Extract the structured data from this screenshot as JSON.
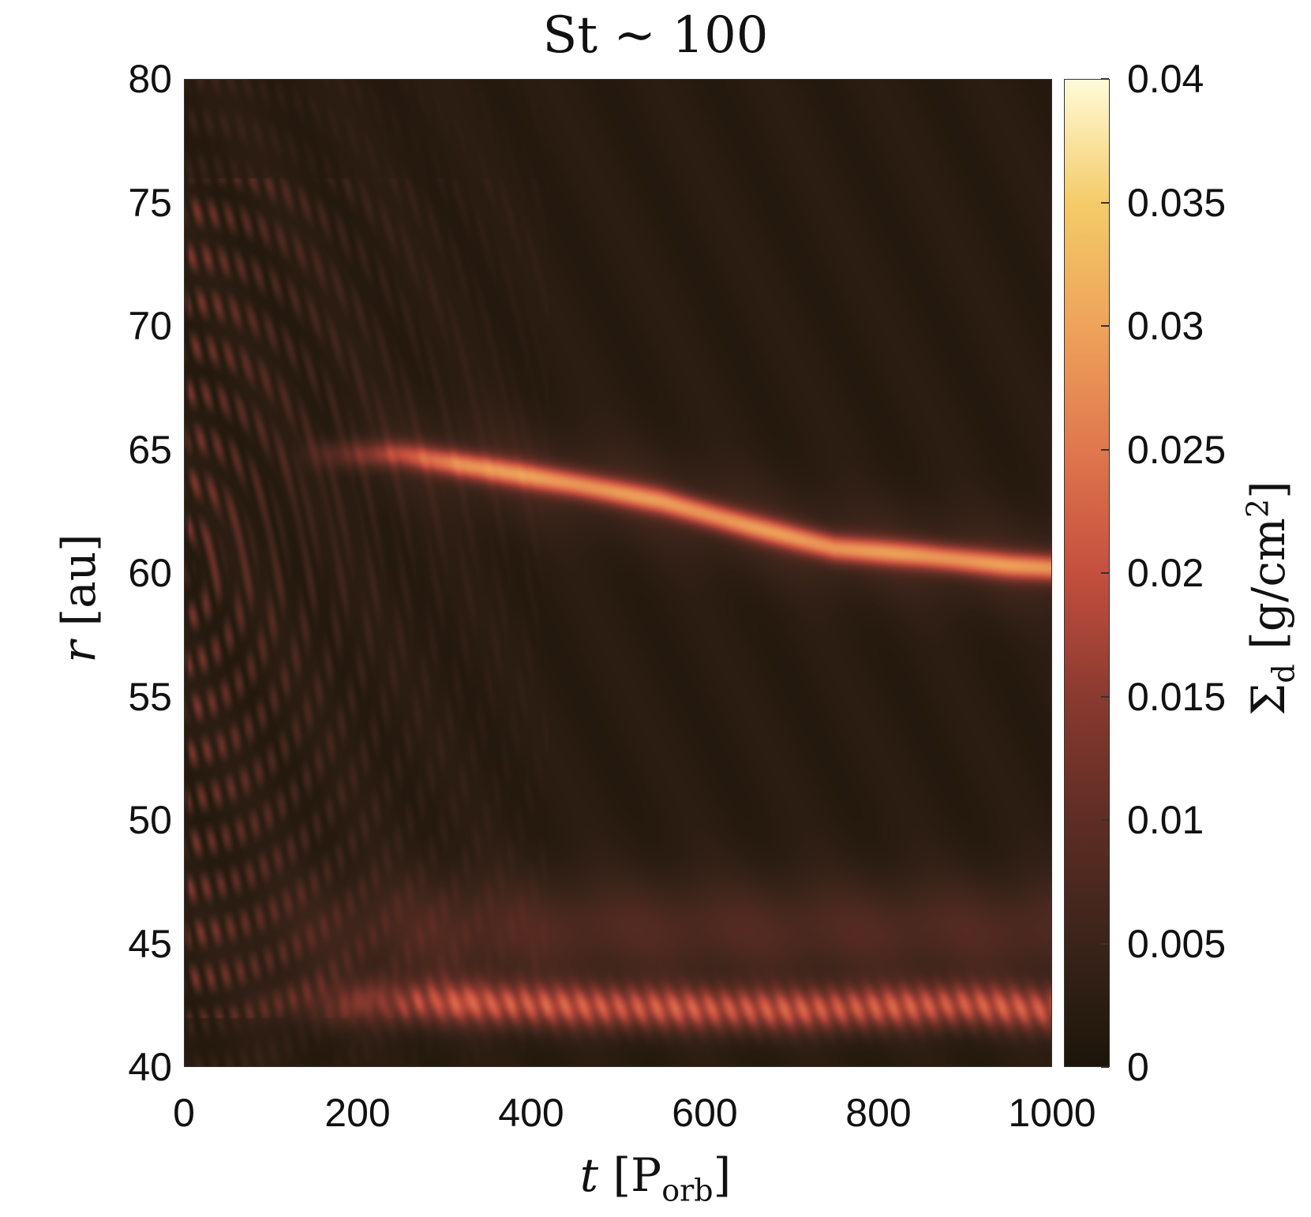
{
  "chart_data": {
    "type": "heatmap",
    "title": "St ∼ 100",
    "xlabel": "t [P_orb]",
    "ylabel": "r [au]",
    "colorbar_label": "Σ_d [g/cm²]",
    "xlim": [
      0,
      1000
    ],
    "ylim": [
      40,
      80
    ],
    "clim": [
      0,
      0.04
    ],
    "x_ticks": [
      "0",
      "200",
      "400",
      "600",
      "800",
      "1000"
    ],
    "y_ticks": [
      "40",
      "45",
      "50",
      "55",
      "60",
      "65",
      "70",
      "75",
      "80"
    ],
    "colorbar_ticks": [
      "0",
      "0.005",
      "0.01",
      "0.015",
      "0.02",
      "0.025",
      "0.03",
      "0.035",
      "0.04"
    ],
    "colormap": [
      "#1c1509",
      "#3a241a",
      "#5e2d24",
      "#8a3a30",
      "#c44f3e",
      "#e0774e",
      "#eea35a",
      "#f4cb68",
      "#fffbd8"
    ],
    "features": {
      "outer_ring": {
        "t": [
          250,
          350,
          450,
          550,
          650,
          750,
          850,
          950,
          1000
        ],
        "r": [
          64.8,
          64.2,
          63.6,
          62.9,
          61.9,
          61.0,
          60.7,
          60.3,
          60.2
        ],
        "peak": 0.023
      },
      "inner_ring": {
        "t": [
          300,
          500,
          700,
          900,
          1000
        ],
        "r": [
          42.6,
          42.4,
          42.3,
          42.5,
          42.3
        ],
        "peak": 0.02
      },
      "background": 0.002
    }
  }
}
